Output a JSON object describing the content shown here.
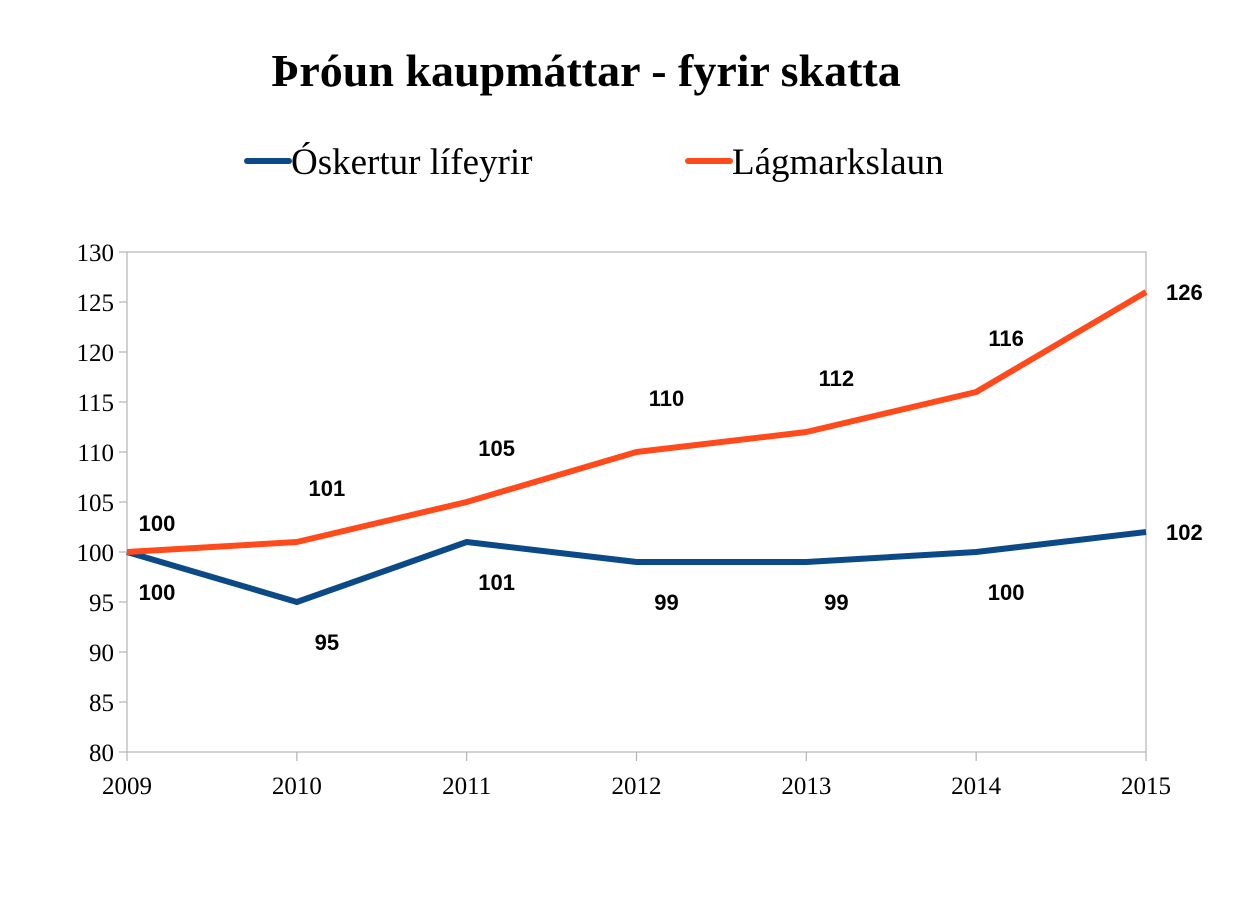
{
  "chart_data": {
    "type": "line",
    "title": "Þróun kaupmáttar - fyrir skatta",
    "xlabel": "",
    "ylabel": "",
    "categories": [
      "2009",
      "2010",
      "2011",
      "2012",
      "2013",
      "2014",
      "2015"
    ],
    "ylim": [
      80,
      130
    ],
    "yticks": [
      80,
      85,
      90,
      95,
      100,
      105,
      110,
      115,
      120,
      125,
      130
    ],
    "grid": false,
    "legend_position": "top",
    "series": [
      {
        "name": "Óskertur lífeyrir",
        "color": "#0B4A86",
        "values": [
          100,
          95,
          101,
          99,
          99,
          100,
          102
        ],
        "labels": [
          "100",
          "95",
          "101",
          "99",
          "99",
          "100",
          "102"
        ],
        "label_position": "below"
      },
      {
        "name": "Lágmarkslaun",
        "color": "#FF4A1C",
        "values": [
          100,
          101,
          105,
          110,
          112,
          116,
          126
        ],
        "labels": [
          "100",
          "101",
          "105",
          "110",
          "112",
          "116",
          "126"
        ],
        "label_position": "above"
      }
    ]
  }
}
